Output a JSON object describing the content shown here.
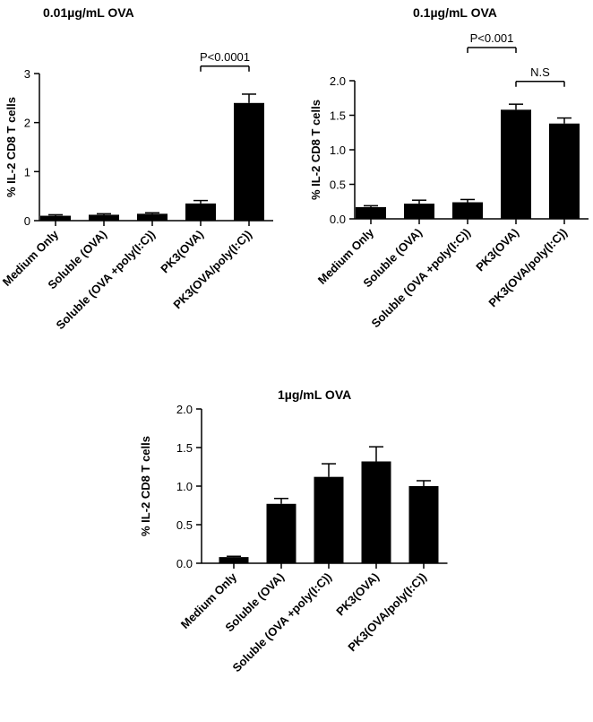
{
  "chart_data": [
    {
      "type": "bar",
      "title": "0.01µg/mL OVA",
      "ylabel": "% IL-2 CD8 T cells",
      "xlabel": "",
      "ylim": [
        0,
        3
      ],
      "yticks": [
        0,
        1,
        2,
        3
      ],
      "tick_labels": [
        "0",
        "1",
        "2",
        "3"
      ],
      "categories": [
        "Medium Only",
        "Soluble (OVA)",
        "Soluble (OVA +poly(I:C))",
        "PK3(OVA)",
        "PK3(OVA/poly(I:C))"
      ],
      "values": [
        0.1,
        0.12,
        0.14,
        0.35,
        2.4
      ],
      "errors": [
        0.02,
        0.02,
        0.02,
        0.06,
        0.18
      ],
      "annotations": [
        {
          "text": "P<0.0001",
          "from": 3,
          "to": 4,
          "level": 3.15
        }
      ],
      "color": "#000000"
    },
    {
      "type": "bar",
      "title": "0.1µg/mL OVA",
      "ylabel": "% IL-2 CD8 T cells",
      "xlabel": "",
      "ylim": [
        0,
        2
      ],
      "yticks": [
        0,
        0.5,
        1,
        1.5,
        2
      ],
      "tick_labels": [
        "0.0",
        "0.5",
        "1.0",
        "1.5",
        "2.0"
      ],
      "categories": [
        "Medium Only",
        "Soluble (OVA)",
        "Soluble (OVA +poly(I:C))",
        "PK3(OVA)",
        "PK3(OVA/poly(I:C))"
      ],
      "values": [
        0.17,
        0.22,
        0.24,
        1.58,
        1.38
      ],
      "errors": [
        0.02,
        0.05,
        0.04,
        0.08,
        0.08
      ],
      "annotations": [
        {
          "text": "P<0.001",
          "from": 2,
          "to": 3,
          "level": 2.48
        },
        {
          "text": "N.S",
          "from": 3,
          "to": 4,
          "level": 1.99
        }
      ],
      "color": "#000000"
    },
    {
      "type": "bar",
      "title": "1µg/mL OVA",
      "ylabel": "% IL-2 CD8 T cells",
      "xlabel": "",
      "ylim": [
        0,
        2
      ],
      "yticks": [
        0,
        0.5,
        1,
        1.5,
        2
      ],
      "tick_labels": [
        "0.0",
        "0.5",
        "1.0",
        "1.5",
        "2.0"
      ],
      "categories": [
        "Medium Only",
        "Soluble (OVA)",
        "Soluble (OVA +poly(I:C))",
        "PK3(OVA)",
        "PK3(OVA/poly(I:C))"
      ],
      "values": [
        0.08,
        0.77,
        1.12,
        1.32,
        1.0
      ],
      "errors": [
        0.01,
        0.07,
        0.17,
        0.19,
        0.07
      ],
      "annotations": [],
      "color": "#000000"
    }
  ]
}
